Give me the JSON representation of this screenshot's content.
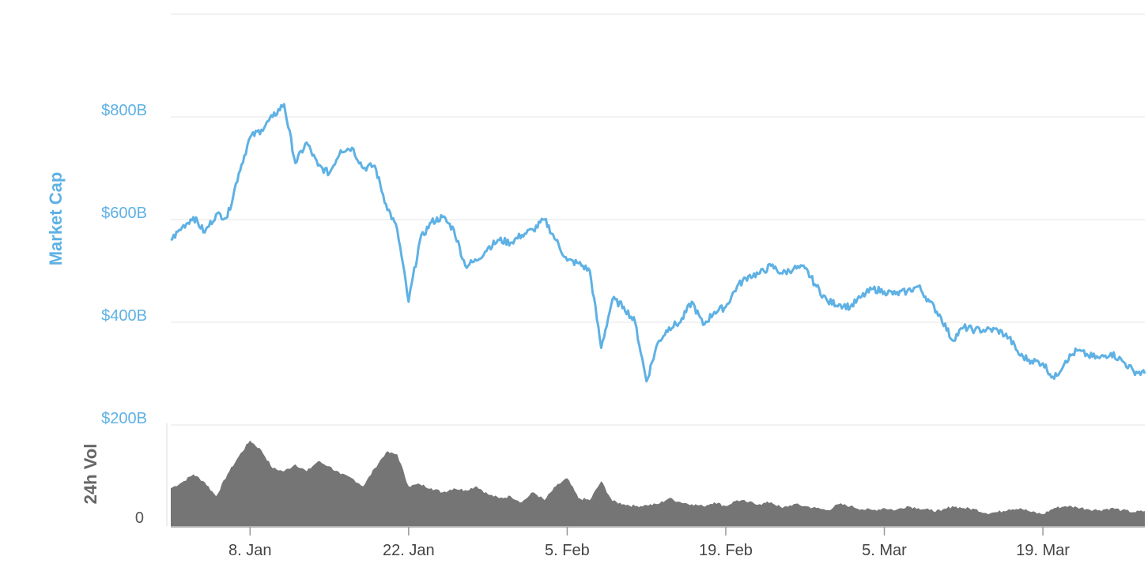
{
  "chart_data": {
    "type": "line",
    "x_range": [
      "2018-01-01",
      "2018-03-28"
    ],
    "market_cap": {
      "ylabel": "Market Cap",
      "unit": "billion USD",
      "yticks": [
        "$200B",
        "$400B",
        "$600B",
        "$800B"
      ],
      "ylim": [
        200,
        1000
      ],
      "color": "#5eb1e4",
      "points": [
        [
          "2018-01-01",
          560
        ],
        [
          "2018-01-02",
          585
        ],
        [
          "2018-01-03",
          605
        ],
        [
          "2018-01-04",
          575
        ],
        [
          "2018-01-05",
          610
        ],
        [
          "2018-01-06",
          605
        ],
        [
          "2018-01-07",
          690
        ],
        [
          "2018-01-08",
          760
        ],
        [
          "2018-01-09",
          775
        ],
        [
          "2018-01-10",
          800
        ],
        [
          "2018-01-11",
          825
        ],
        [
          "2018-01-12",
          710
        ],
        [
          "2018-01-13",
          750
        ],
        [
          "2018-01-14",
          705
        ],
        [
          "2018-01-15",
          690
        ],
        [
          "2018-01-16",
          735
        ],
        [
          "2018-01-17",
          740
        ],
        [
          "2018-01-18",
          700
        ],
        [
          "2018-01-19",
          705
        ],
        [
          "2018-01-20",
          630
        ],
        [
          "2018-01-21",
          580
        ],
        [
          "2018-01-22",
          440
        ],
        [
          "2018-01-23",
          560
        ],
        [
          "2018-01-24",
          595
        ],
        [
          "2018-01-25",
          605
        ],
        [
          "2018-01-26",
          580
        ],
        [
          "2018-01-27",
          510
        ],
        [
          "2018-01-28",
          520
        ],
        [
          "2018-01-29",
          545
        ],
        [
          "2018-01-30",
          560
        ],
        [
          "2018-01-31",
          555
        ],
        [
          "2018-02-01",
          570
        ],
        [
          "2018-02-02",
          580
        ],
        [
          "2018-02-03",
          600
        ],
        [
          "2018-02-04",
          560
        ],
        [
          "2018-02-05",
          520
        ],
        [
          "2018-02-06",
          515
        ],
        [
          "2018-02-07",
          500
        ],
        [
          "2018-02-08",
          350
        ],
        [
          "2018-02-09",
          445
        ],
        [
          "2018-02-10",
          430
        ],
        [
          "2018-02-11",
          400
        ],
        [
          "2018-02-12",
          285
        ],
        [
          "2018-02-13",
          360
        ],
        [
          "2018-02-14",
          390
        ],
        [
          "2018-02-15",
          400
        ],
        [
          "2018-02-16",
          440
        ],
        [
          "2018-02-17",
          395
        ],
        [
          "2018-02-18",
          420
        ],
        [
          "2018-02-19",
          430
        ],
        [
          "2018-02-20",
          470
        ],
        [
          "2018-02-21",
          490
        ],
        [
          "2018-02-22",
          495
        ],
        [
          "2018-02-23",
          510
        ],
        [
          "2018-02-24",
          495
        ],
        [
          "2018-02-25",
          505
        ],
        [
          "2018-02-26",
          505
        ],
        [
          "2018-02-27",
          470
        ],
        [
          "2018-02-28",
          440
        ],
        [
          "2018-03-01",
          435
        ],
        [
          "2018-03-02",
          430
        ],
        [
          "2018-03-03",
          450
        ],
        [
          "2018-03-04",
          465
        ],
        [
          "2018-03-05",
          460
        ],
        [
          "2018-03-06",
          455
        ],
        [
          "2018-03-07",
          460
        ],
        [
          "2018-03-08",
          470
        ],
        [
          "2018-03-09",
          440
        ],
        [
          "2018-03-10",
          410
        ],
        [
          "2018-03-11",
          365
        ],
        [
          "2018-03-12",
          390
        ],
        [
          "2018-03-13",
          385
        ],
        [
          "2018-03-14",
          385
        ],
        [
          "2018-03-15",
          385
        ],
        [
          "2018-03-16",
          370
        ],
        [
          "2018-03-17",
          335
        ],
        [
          "2018-03-18",
          325
        ],
        [
          "2018-03-19",
          320
        ],
        [
          "2018-03-20",
          290
        ],
        [
          "2018-03-21",
          325
        ],
        [
          "2018-03-22",
          345
        ],
        [
          "2018-03-23",
          335
        ],
        [
          "2018-03-24",
          330
        ],
        [
          "2018-03-25",
          340
        ],
        [
          "2018-03-26",
          325
        ],
        [
          "2018-03-27",
          305
        ],
        [
          "2018-03-28",
          300
        ]
      ]
    },
    "volume": {
      "ylabel": "24h Vol",
      "yticks": [
        "0"
      ],
      "ylim": [
        0,
        100
      ],
      "color": "#757575",
      "points": [
        [
          "2018-01-01",
          38
        ],
        [
          "2018-01-02",
          44
        ],
        [
          "2018-01-03",
          52
        ],
        [
          "2018-01-04",
          44
        ],
        [
          "2018-01-05",
          30
        ],
        [
          "2018-01-06",
          52
        ],
        [
          "2018-01-07",
          70
        ],
        [
          "2018-01-08",
          86
        ],
        [
          "2018-01-09",
          76
        ],
        [
          "2018-01-10",
          58
        ],
        [
          "2018-01-11",
          55
        ],
        [
          "2018-01-12",
          62
        ],
        [
          "2018-01-13",
          55
        ],
        [
          "2018-01-14",
          65
        ],
        [
          "2018-01-15",
          60
        ],
        [
          "2018-01-16",
          52
        ],
        [
          "2018-01-17",
          48
        ],
        [
          "2018-01-18",
          40
        ],
        [
          "2018-01-19",
          58
        ],
        [
          "2018-01-20",
          74
        ],
        [
          "2018-01-21",
          72
        ],
        [
          "2018-01-22",
          40
        ],
        [
          "2018-01-23",
          42
        ],
        [
          "2018-01-24",
          38
        ],
        [
          "2018-01-25",
          34
        ],
        [
          "2018-01-26",
          38
        ],
        [
          "2018-01-27",
          36
        ],
        [
          "2018-01-28",
          40
        ],
        [
          "2018-01-29",
          32
        ],
        [
          "2018-01-30",
          28
        ],
        [
          "2018-01-31",
          30
        ],
        [
          "2018-02-01",
          24
        ],
        [
          "2018-02-02",
          34
        ],
        [
          "2018-02-03",
          26
        ],
        [
          "2018-02-04",
          40
        ],
        [
          "2018-02-05",
          48
        ],
        [
          "2018-02-06",
          28
        ],
        [
          "2018-02-07",
          26
        ],
        [
          "2018-02-08",
          45
        ],
        [
          "2018-02-09",
          25
        ],
        [
          "2018-02-10",
          22
        ],
        [
          "2018-02-11",
          20
        ],
        [
          "2018-02-12",
          21
        ],
        [
          "2018-02-13",
          22
        ],
        [
          "2018-02-14",
          28
        ],
        [
          "2018-02-15",
          24
        ],
        [
          "2018-02-16",
          22
        ],
        [
          "2018-02-17",
          20
        ],
        [
          "2018-02-18",
          24
        ],
        [
          "2018-02-19",
          20
        ],
        [
          "2018-02-20",
          26
        ],
        [
          "2018-02-21",
          24
        ],
        [
          "2018-02-22",
          22
        ],
        [
          "2018-02-23",
          24
        ],
        [
          "2018-02-24",
          18
        ],
        [
          "2018-02-25",
          22
        ],
        [
          "2018-02-26",
          20
        ],
        [
          "2018-02-27",
          18
        ],
        [
          "2018-02-28",
          16
        ],
        [
          "2018-03-01",
          22
        ],
        [
          "2018-03-02",
          20
        ],
        [
          "2018-03-03",
          17
        ],
        [
          "2018-03-04",
          16
        ],
        [
          "2018-03-05",
          18
        ],
        [
          "2018-03-06",
          16
        ],
        [
          "2018-03-07",
          20
        ],
        [
          "2018-03-08",
          18
        ],
        [
          "2018-03-09",
          16
        ],
        [
          "2018-03-10",
          15
        ],
        [
          "2018-03-11",
          20
        ],
        [
          "2018-03-12",
          18
        ],
        [
          "2018-03-13",
          17
        ],
        [
          "2018-03-14",
          13
        ],
        [
          "2018-03-15",
          14
        ],
        [
          "2018-03-16",
          17
        ],
        [
          "2018-03-17",
          18
        ],
        [
          "2018-03-18",
          14
        ],
        [
          "2018-03-19",
          12
        ],
        [
          "2018-03-20",
          18
        ],
        [
          "2018-03-21",
          20
        ],
        [
          "2018-03-22",
          19
        ],
        [
          "2018-03-23",
          17
        ],
        [
          "2018-03-24",
          16
        ],
        [
          "2018-03-25",
          18
        ],
        [
          "2018-03-26",
          16
        ],
        [
          "2018-03-27",
          14
        ],
        [
          "2018-03-28",
          15
        ]
      ]
    },
    "xticks": [
      {
        "date": "2018-01-08",
        "label": "8. Jan"
      },
      {
        "date": "2018-01-22",
        "label": "22. Jan"
      },
      {
        "date": "2018-02-05",
        "label": "5. Feb"
      },
      {
        "date": "2018-02-19",
        "label": "19. Feb"
      },
      {
        "date": "2018-03-05",
        "label": "5. Mar"
      },
      {
        "date": "2018-03-19",
        "label": "19. Mar"
      }
    ],
    "grid": true,
    "legend": "none"
  }
}
